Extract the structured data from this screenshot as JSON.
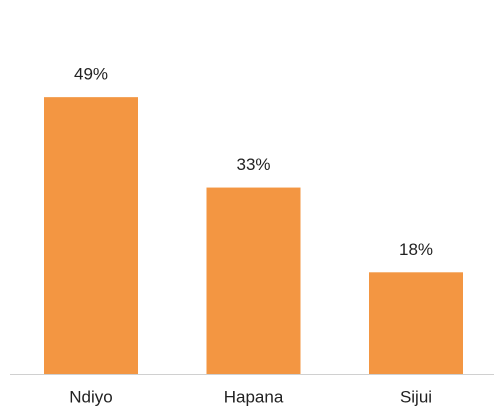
{
  "chart_data": {
    "type": "bar",
    "categories": [
      "Ndiyo",
      "Hapana",
      "Sijui"
    ],
    "values": [
      49,
      33,
      18
    ],
    "value_labels": [
      "49%",
      "33%",
      "18%"
    ],
    "color": "#f39642"
  }
}
